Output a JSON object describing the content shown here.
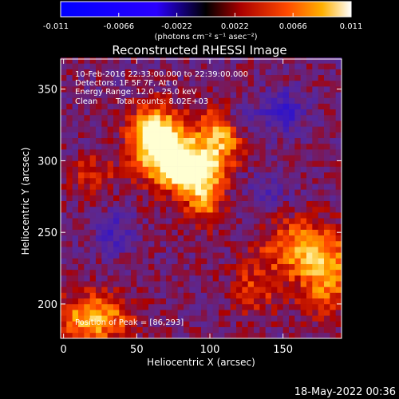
{
  "chart_data": {
    "type": "heatmap",
    "title": "Reconstructed RHESSI Image",
    "xlabel": "Heliocentric X (arcsec)",
    "ylabel": "Heliocentric Y (arcsec)",
    "xlim": [
      -2,
      190
    ],
    "ylim": [
      176,
      371
    ],
    "xticks": [
      0,
      50,
      100,
      150
    ],
    "yticks": [
      200,
      250,
      300,
      350
    ],
    "colorbar": {
      "range": [
        -0.011,
        0.011
      ],
      "ticks": [
        "-0.011",
        "-0.0066",
        "-0.0022",
        "0.0022",
        "0.0066",
        "0.011"
      ],
      "unit_label": "(photons cm⁻² s⁻¹ asec⁻²)"
    },
    "annotations": {
      "time_range": "10-Feb-2016 22:33:00.000 to 22:39:00.000",
      "detectors": "Detectors: 1F 5F 7F, Att 0",
      "energy_range": "Energy Range: 12.0 - 25.0 keV",
      "clean_label": "Clean",
      "total_counts": "Total counts: 8.02E+03",
      "peak": "Position of Peak = [86,293]"
    },
    "footer_date": "18-May-2022 00:36",
    "peak_position": [
      86,
      293
    ],
    "sources": [
      {
        "x": 72,
        "y": 305,
        "sx": 16,
        "sy": 16,
        "amp": 1.0
      },
      {
        "x": 90,
        "y": 293,
        "sx": 12,
        "sy": 10,
        "amp": 0.85
      },
      {
        "x": 60,
        "y": 322,
        "sx": 10,
        "sy": 12,
        "amp": 0.7
      },
      {
        "x": 108,
        "y": 318,
        "sx": 10,
        "sy": 14,
        "amp": 0.7
      },
      {
        "x": 96,
        "y": 272,
        "sx": 9,
        "sy": 12,
        "amp": 0.55
      },
      {
        "x": 160,
        "y": 240,
        "sx": 18,
        "sy": 14,
        "amp": 0.55
      },
      {
        "x": 180,
        "y": 220,
        "sx": 14,
        "sy": 18,
        "amp": 0.6
      },
      {
        "x": 20,
        "y": 190,
        "sx": 18,
        "sy": 12,
        "amp": 0.75
      },
      {
        "x": 130,
        "y": 210,
        "sx": 12,
        "sy": 14,
        "amp": 0.35
      },
      {
        "x": 20,
        "y": 290,
        "sx": 10,
        "sy": 10,
        "amp": 0.35
      },
      {
        "x": 150,
        "y": 335,
        "sx": 10,
        "sy": 10,
        "amp": -0.45
      },
      {
        "x": 120,
        "y": 330,
        "sx": 8,
        "sy": 8,
        "amp": -0.35
      },
      {
        "x": 35,
        "y": 250,
        "sx": 10,
        "sy": 10,
        "amp": -0.3
      },
      {
        "x": 140,
        "y": 280,
        "sx": 12,
        "sy": 10,
        "amp": -0.2
      }
    ]
  }
}
